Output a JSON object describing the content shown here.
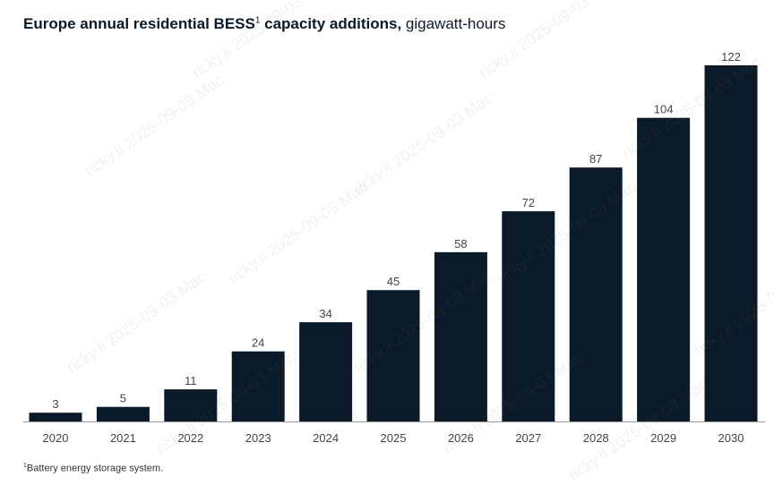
{
  "title": {
    "main": "Europe annual residential BESS",
    "footnote_marker": "1",
    "main_suffix": " capacity additions,",
    "unit": "gigawatt-hours"
  },
  "footnote": {
    "marker": "1",
    "text": "Battery energy storage system."
  },
  "watermark": {
    "text": "ricky.li  2025-09-03  Mac"
  },
  "colors": {
    "bar": "#0b1a29",
    "axis": "#9a9a9a",
    "label": "#444444"
  },
  "chart_data": {
    "type": "bar",
    "title": "Europe annual residential BESS capacity additions",
    "ylabel": "gigawatt-hours",
    "xlabel": "",
    "categories": [
      "2020",
      "2021",
      "2022",
      "2023",
      "2024",
      "2025",
      "2026",
      "2027",
      "2028",
      "2029",
      "2030"
    ],
    "values": [
      3,
      5,
      11,
      24,
      34,
      45,
      58,
      72,
      87,
      104,
      122
    ],
    "ylim": [
      0,
      122
    ],
    "grid": false,
    "legend": "none",
    "data_labels": true
  }
}
